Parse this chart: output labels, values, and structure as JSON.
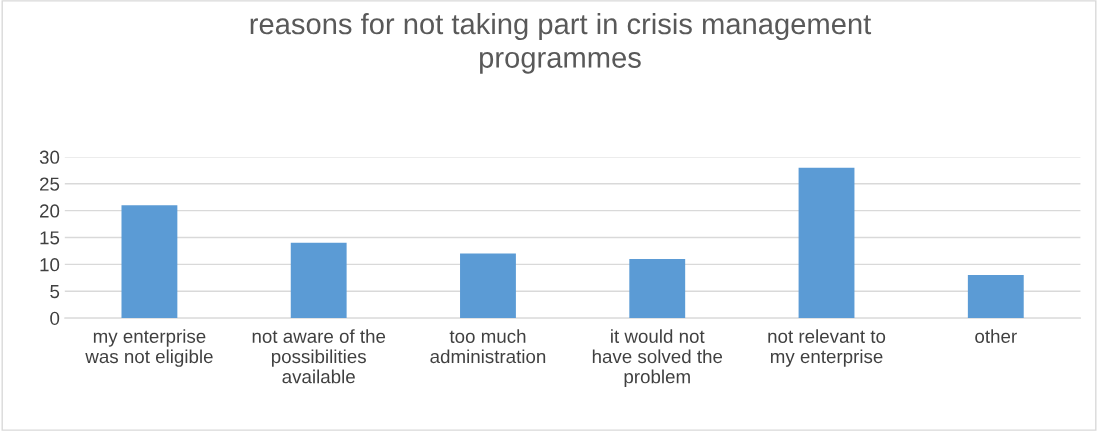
{
  "chart_data": {
    "type": "bar",
    "title": "reasons for not taking part in crisis management\nprogrammes",
    "categories": [
      "my enterprise\nwas not eligible",
      "not aware of the\npossibilities\navailable",
      "too much\nadministration",
      "it would not\nhave solved the\nproblem",
      "not relevant to\nmy enterprise",
      "other"
    ],
    "values": [
      21,
      14,
      12,
      11,
      28,
      8
    ],
    "color": "#5b9bd5",
    "ylim": [
      0,
      30
    ],
    "yticks": [
      0,
      5,
      10,
      15,
      20,
      25,
      30
    ],
    "grid": "y",
    "legend": false
  }
}
